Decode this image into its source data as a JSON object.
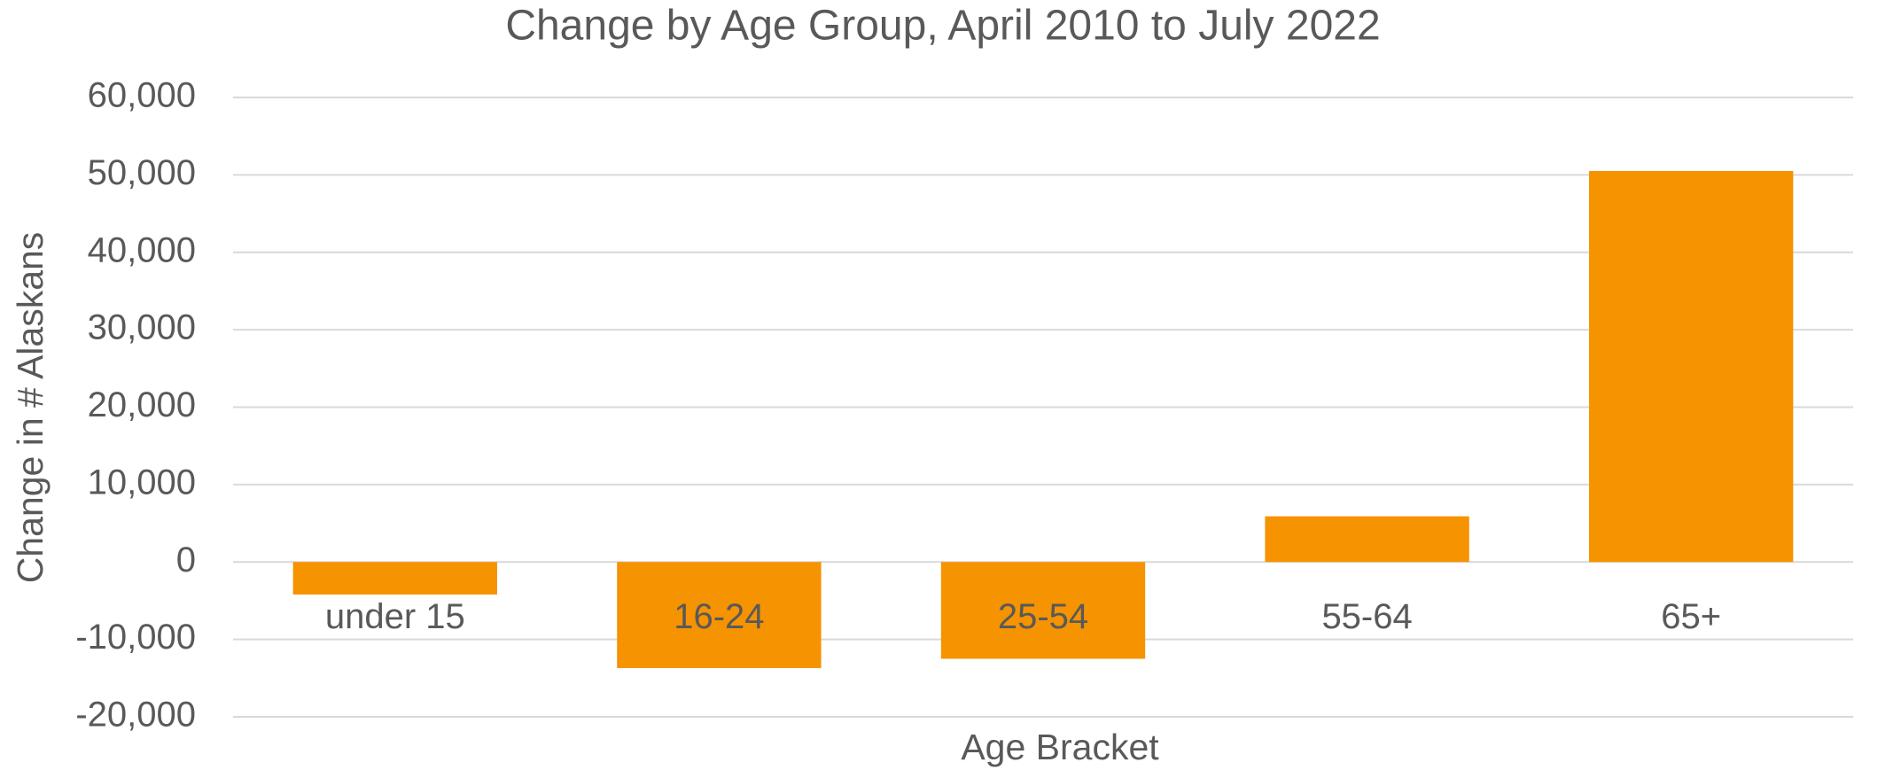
{
  "chart_data": {
    "type": "bar",
    "title": "Change by Age Group, April 2010 to July 2022",
    "x_label": "Age Bracket",
    "y_label": "Change in # Alaskans",
    "categories": [
      "under 15",
      "16-24",
      "25-54",
      "55-64",
      "65+"
    ],
    "values": [
      -4200,
      -13700,
      -12500,
      5900,
      50500
    ],
    "color": "#f59300",
    "ylim": [
      -20000,
      60000
    ],
    "yticks": [
      {
        "value": -20000,
        "label": "-20,000"
      },
      {
        "value": -10000,
        "label": "-10,000"
      },
      0,
      {
        "value": 10000,
        "label": "10,000"
      },
      {
        "value": 20000,
        "label": "20,000"
      },
      {
        "value": 30000,
        "label": "30,000"
      },
      {
        "value": 40000,
        "label": "40,000"
      },
      {
        "value": 50000,
        "label": "50,000"
      },
      {
        "value": 60000,
        "label": "60,000"
      }
    ],
    "grid": true
  }
}
